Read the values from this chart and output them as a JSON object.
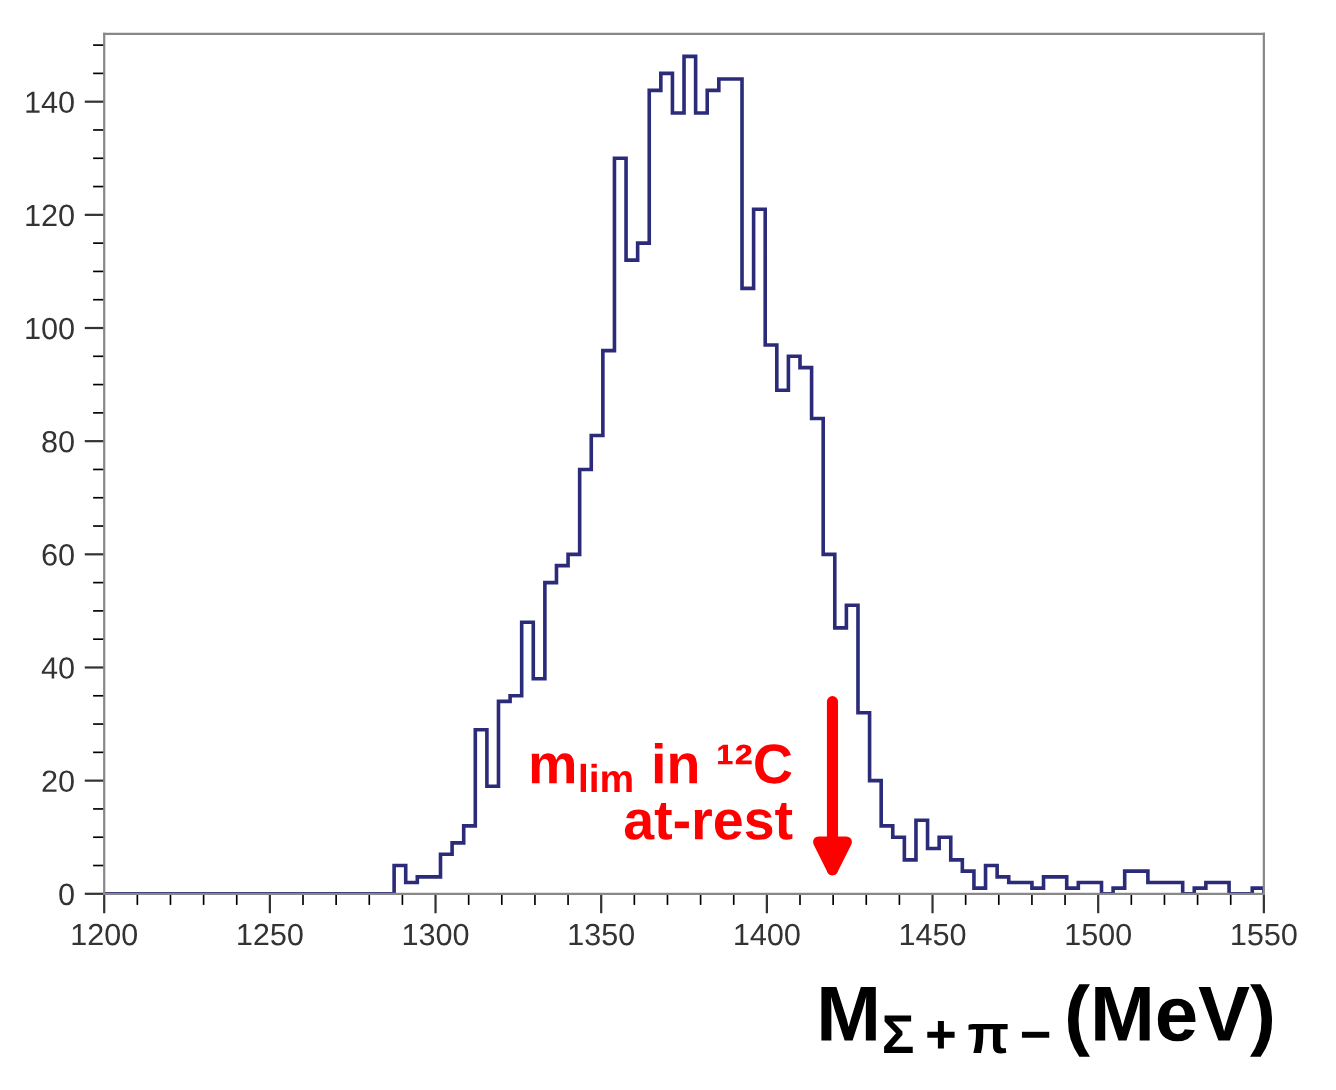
{
  "chart_data": {
    "type": "histogram",
    "xlabel": "M$_{Σ+π−}$(MeV)",
    "bins": [
      1200,
      1203.5,
      1207,
      1210.5,
      1214,
      1217.5,
      1221,
      1224.5,
      1228,
      1231.5,
      1235,
      1238.5,
      1242,
      1245.5,
      1249,
      1252.5,
      1256,
      1259.5,
      1263,
      1266.5,
      1270,
      1273.5,
      1277,
      1280.5,
      1284,
      1287.5,
      1291,
      1294.5,
      1298,
      1301.5,
      1305,
      1308.5,
      1312,
      1315.5,
      1319,
      1322.5,
      1326,
      1329.5,
      1333,
      1336.5,
      1340,
      1343.5,
      1347,
      1350.5,
      1354,
      1357.5,
      1361,
      1364.5,
      1368,
      1371.5,
      1375,
      1378.5,
      1382,
      1385.5,
      1389,
      1392.5,
      1396,
      1399.5,
      1403,
      1406.5,
      1410,
      1413.5,
      1417,
      1420.5,
      1424,
      1427.5,
      1431,
      1434.5,
      1438,
      1441.5,
      1445,
      1448.5,
      1452,
      1455.5,
      1459,
      1462.5,
      1466,
      1469.5,
      1473,
      1476.5,
      1480,
      1483.5,
      1487,
      1490.5,
      1494,
      1497.5,
      1501,
      1504.5,
      1508,
      1511.5,
      1515,
      1518.5,
      1522,
      1525.5,
      1529,
      1532.5,
      1536,
      1539.5,
      1543,
      1546.5,
      1550
    ],
    "values": [
      0,
      0,
      0,
      0,
      0,
      0,
      0,
      0,
      0,
      0,
      0,
      0,
      0,
      0,
      0,
      0,
      0,
      0,
      0,
      0,
      0,
      0,
      0,
      0,
      0,
      5,
      2,
      3,
      3,
      7,
      9,
      12,
      29,
      19,
      34,
      35,
      48,
      38,
      55,
      58,
      60,
      75,
      81,
      96,
      130,
      112,
      115,
      142,
      145,
      138,
      148,
      138,
      142,
      144,
      144,
      107,
      121,
      97,
      89,
      95,
      93,
      84,
      60,
      47,
      51,
      32,
      20,
      12,
      10,
      6,
      13,
      8,
      10,
      6,
      4,
      1,
      5,
      3,
      2,
      2,
      1,
      3,
      3,
      1,
      2,
      2,
      0,
      1,
      4,
      4,
      2,
      2,
      2,
      0,
      1,
      2,
      2,
      0,
      0,
      1
    ],
    "color": "#2b2b7a",
    "xlim": [
      1200,
      1550
    ],
    "xticks": [
      1200,
      1250,
      1300,
      1350,
      1400,
      1450,
      1500,
      1550
    ],
    "ylim": [
      0,
      152
    ],
    "yticks": [
      0,
      20,
      40,
      60,
      80,
      100,
      120,
      140
    ],
    "grid": false,
    "annotations": [
      "m$_{lim}$ in ¹²C\nat-rest"
    ]
  }
}
